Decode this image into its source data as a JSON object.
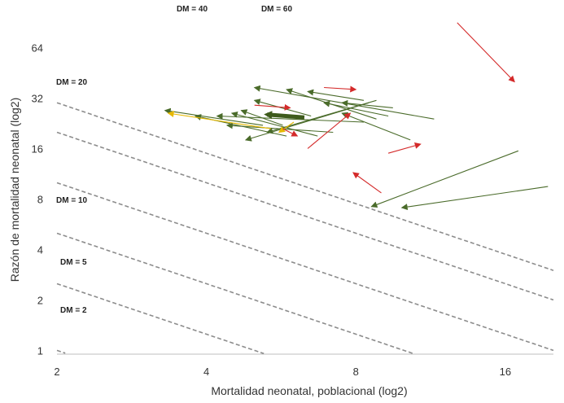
{
  "chart_data": {
    "type": "scatter",
    "title": "",
    "xlabel": "Mortalidad neonatal, poblacional (log2)",
    "ylabel": "Razón de mortalidad neonatal (log2)",
    "x_scale": "log2",
    "y_scale": "log2",
    "xlim": [
      2,
      20
    ],
    "ylim": [
      0.95,
      110
    ],
    "x_ticks": [
      2,
      4,
      8,
      16
    ],
    "y_ticks": [
      1,
      2,
      4,
      8,
      16,
      32,
      64
    ],
    "grid": false,
    "legend": "none",
    "reference_curves": [
      {
        "label": "DM = 2",
        "value": 2
      },
      {
        "label": "DM = 5",
        "value": 5
      },
      {
        "label": "DM = 10",
        "value": 10
      },
      {
        "label": "DM = 20",
        "value": 20
      },
      {
        "label": "DM = 40",
        "value": 40
      },
      {
        "label": "DM = 60",
        "value": 60
      }
    ],
    "series": [
      {
        "color": "#4a6b2a",
        "arrows": [
          {
            "from": [
              11.5,
              24
            ],
            "to": [
              5.0,
              37
            ]
          },
          {
            "from": [
              8.8,
              24
            ],
            "to": [
              5.8,
              36
            ]
          },
          {
            "from": [
              8.3,
              31
            ],
            "to": [
              6.4,
              35
            ]
          },
          {
            "from": [
              9.3,
              25
            ],
            "to": [
              6.9,
              30
            ]
          },
          {
            "from": [
              9.5,
              28
            ],
            "to": [
              7.5,
              30
            ]
          },
          {
            "from": [
              10.3,
              18
            ],
            "to": [
              7.5,
              26
            ]
          },
          {
            "from": [
              5.8,
              19
            ],
            "to": [
              3.8,
              25
            ]
          },
          {
            "from": [
              5.2,
              22
            ],
            "to": [
              3.3,
              27
            ]
          },
          {
            "from": [
              6.7,
              19
            ],
            "to": [
              4.5,
              26
            ]
          },
          {
            "from": [
              8.3,
              23
            ],
            "to": [
              4.2,
              25
            ]
          },
          {
            "from": [
              5.7,
              22
            ],
            "to": [
              4.7,
              27
            ]
          },
          {
            "from": [
              7.2,
              20
            ],
            "to": [
              4.4,
              22
            ]
          },
          {
            "from": [
              8.5,
              30
            ],
            "to": [
              4.8,
              18
            ]
          },
          {
            "from": [
              8.8,
              31
            ],
            "to": [
              5.3,
              20
            ]
          },
          {
            "from": [
              6.5,
              25
            ],
            "to": [
              5.0,
              31
            ]
          },
          {
            "from": [
              17.0,
              15.5
            ],
            "to": [
              8.6,
              7.2
            ]
          },
          {
            "from": [
              19.5,
              9.5
            ],
            "to": [
              9.9,
              7.1
            ]
          }
        ]
      },
      {
        "color": "#3e5b1c",
        "arrows": [
          {
            "from": [
              6.3,
              24.5
            ],
            "to": [
              5.3,
              25.5
            ]
          }
        ]
      },
      {
        "color": "#e6b800",
        "arrows": [
          {
            "from": [
              5.4,
              21
            ],
            "to": [
              3.35,
              26
            ]
          },
          {
            "from": [
              6.0,
              23
            ],
            "to": [
              5.6,
              20
            ]
          }
        ]
      },
      {
        "color": "#d42a2a",
        "arrows": [
          {
            "from": [
              6.9,
              37
            ],
            "to": [
              8.0,
              36
            ]
          },
          {
            "from": [
              5.0,
              29
            ],
            "to": [
              5.9,
              28
            ]
          },
          {
            "from": [
              5.7,
              21
            ],
            "to": [
              6.1,
              19
            ]
          },
          {
            "from": [
              6.4,
              16
            ],
            "to": [
              7.8,
              26
            ]
          },
          {
            "from": [
              12.8,
              90
            ],
            "to": [
              16.7,
              40
            ]
          },
          {
            "from": [
              9.3,
              15
            ],
            "to": [
              10.8,
              17
            ]
          },
          {
            "from": [
              9.0,
              8.7
            ],
            "to": [
              7.9,
              11.5
            ]
          }
        ]
      }
    ]
  }
}
